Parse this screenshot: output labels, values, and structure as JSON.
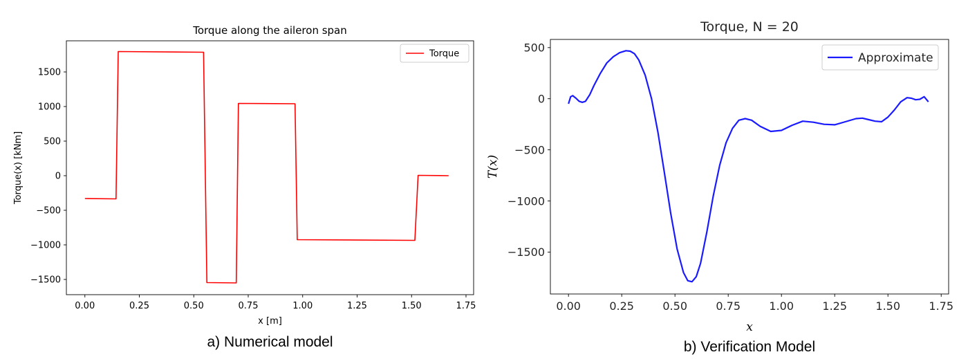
{
  "chart_data": [
    {
      "type": "line",
      "title": "Torque along the aileron span",
      "xlabel": "x [m]",
      "ylabel": "Torque(x) [kNm]",
      "xlim": [
        -0.085,
        1.785
      ],
      "ylim": [
        -1720,
        1950
      ],
      "xticks": [
        0.0,
        0.25,
        0.5,
        0.75,
        1.0,
        1.25,
        1.5,
        1.75
      ],
      "xtick_labels": [
        "0.00",
        "0.25",
        "0.50",
        "0.75",
        "1.00",
        "1.25",
        "1.50",
        "1.75"
      ],
      "yticks": [
        -1500,
        -1000,
        -500,
        0,
        500,
        1000,
        1500
      ],
      "ytick_labels": [
        "−1500",
        "−1000",
        "−500",
        "0",
        "500",
        "1000",
        "1500"
      ],
      "grid": false,
      "legend": "upper right",
      "caption": "a) Numerical model",
      "series": [
        {
          "name": "Torque",
          "color": "#ff0000",
          "x": [
            0.0,
            0.143,
            0.153,
            0.545,
            0.56,
            0.695,
            0.705,
            0.965,
            0.975,
            1.515,
            1.53,
            1.67
          ],
          "y": [
            -330,
            -335,
            1795,
            1785,
            -1545,
            -1550,
            1045,
            1040,
            -925,
            -935,
            5,
            0
          ]
        }
      ]
    },
    {
      "type": "line",
      "title": "Torque, N = 20",
      "xlabel": "x",
      "ylabel": "T(x)",
      "xlim": [
        -0.085,
        1.785
      ],
      "ylim": [
        -1910,
        580
      ],
      "xticks": [
        0.0,
        0.25,
        0.5,
        0.75,
        1.0,
        1.25,
        1.5,
        1.75
      ],
      "xtick_labels": [
        "0.00",
        "0.25",
        "0.50",
        "0.75",
        "1.00",
        "1.25",
        "1.50",
        "1.75"
      ],
      "yticks": [
        -1500,
        -1000,
        -500,
        0,
        500
      ],
      "ytick_labels": [
        "−1500",
        "−1000",
        "−500",
        "0",
        "500"
      ],
      "grid": false,
      "legend": "upper right",
      "caption": "b) Verification Model",
      "series": [
        {
          "name": "Approximate",
          "color": "#1a1aff",
          "x": [
            0.0,
            0.01,
            0.02,
            0.035,
            0.05,
            0.065,
            0.08,
            0.1,
            0.12,
            0.15,
            0.18,
            0.21,
            0.24,
            0.27,
            0.29,
            0.31,
            0.33,
            0.36,
            0.39,
            0.42,
            0.45,
            0.48,
            0.51,
            0.54,
            0.56,
            0.58,
            0.6,
            0.62,
            0.65,
            0.68,
            0.71,
            0.74,
            0.77,
            0.8,
            0.83,
            0.86,
            0.9,
            0.95,
            1.0,
            1.05,
            1.1,
            1.15,
            1.2,
            1.25,
            1.3,
            1.35,
            1.38,
            1.41,
            1.44,
            1.47,
            1.5,
            1.53,
            1.56,
            1.59,
            1.61,
            1.63,
            1.65,
            1.67,
            1.69
          ],
          "y": [
            -50,
            20,
            30,
            5,
            -25,
            -35,
            -25,
            40,
            130,
            250,
            350,
            410,
            450,
            470,
            465,
            440,
            380,
            230,
            0,
            -330,
            -720,
            -1120,
            -1470,
            -1700,
            -1780,
            -1790,
            -1740,
            -1610,
            -1300,
            -950,
            -650,
            -430,
            -290,
            -210,
            -195,
            -210,
            -270,
            -320,
            -310,
            -260,
            -220,
            -230,
            -250,
            -255,
            -225,
            -195,
            -190,
            -205,
            -220,
            -225,
            -180,
            -110,
            -30,
            10,
            5,
            -10,
            -5,
            20,
            -30
          ]
        }
      ]
    }
  ]
}
